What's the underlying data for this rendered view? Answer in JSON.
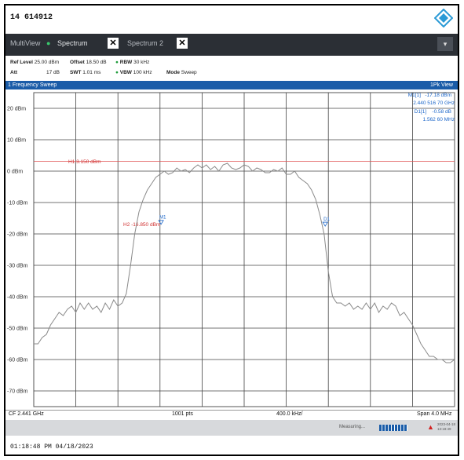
{
  "window": {
    "id_text": "14 614912",
    "timestamp": "01:18:48 PM  04/18/2023"
  },
  "tabs": [
    {
      "label": "MultiView",
      "active": false
    },
    {
      "label": "Spectrum",
      "active": true
    },
    {
      "label": "Spectrum 2",
      "active": false
    }
  ],
  "params": {
    "ref_level_label": "Ref Level",
    "ref_level_value": "25.00 dBm",
    "offset_label": "Offset",
    "offset_value": "18.50 dB",
    "rbw_label": "RBW",
    "rbw_value": "30 kHz",
    "att_label": "Att",
    "att_value": "17 dB",
    "swt_label": "SWT",
    "swt_value": "1.01 ms",
    "vbw_label": "VBW",
    "vbw_value": "100 kHz",
    "mode_label": "Mode",
    "mode_value": "Sweep"
  },
  "sweep": {
    "title": "1 Frequency Sweep",
    "view": "1Pk View"
  },
  "markers": {
    "m1_label": "M1[1]",
    "m1_level": "-17.18 dBm",
    "m1_freq": "2.440 516 70 GHz",
    "d1_label": "D1[1]",
    "d1_level": "-0.58 dB",
    "d1_freq": "1.562 60 MHz"
  },
  "lines": {
    "h1": "H1 3.150 dBm",
    "h2": "H2 -16.850 dBm"
  },
  "y_ticks": [
    "20 dBm",
    "10 dBm",
    "0 dBm",
    "-10 dBm",
    "-20 dBm",
    "-30 dBm",
    "-40 dBm",
    "-50 dBm",
    "-60 dBm",
    "-70 dBm"
  ],
  "status": {
    "cf": "CF 2.441 GHz",
    "pts": "1001 pts",
    "div": "400.0 kHz/",
    "span": "Span 4.0 MHz"
  },
  "bottom": {
    "measuring": "Measuring...",
    "date_small": "2023-04-18",
    "time_small": "13:18:49"
  },
  "chart_data": {
    "type": "line",
    "x_unit": "MHz offset from CF 2.441 GHz",
    "xlim": [
      -2.0,
      2.0
    ],
    "ylim": [
      -75,
      25
    ],
    "reference_lines": [
      {
        "name": "H1",
        "value": 3.15
      },
      {
        "name": "H2",
        "value": -16.85
      }
    ],
    "series": [
      {
        "name": "1Pk View",
        "color": "#8a8a8a",
        "x": [
          -2.0,
          -1.96,
          -1.92,
          -1.88,
          -1.84,
          -1.8,
          -1.76,
          -1.72,
          -1.68,
          -1.64,
          -1.6,
          -1.56,
          -1.52,
          -1.48,
          -1.44,
          -1.4,
          -1.36,
          -1.32,
          -1.28,
          -1.24,
          -1.2,
          -1.16,
          -1.12,
          -1.08,
          -1.04,
          -1.0,
          -0.96,
          -0.92,
          -0.88,
          -0.84,
          -0.8,
          -0.76,
          -0.72,
          -0.68,
          -0.64,
          -0.6,
          -0.56,
          -0.52,
          -0.48,
          -0.44,
          -0.4,
          -0.36,
          -0.32,
          -0.28,
          -0.24,
          -0.2,
          -0.16,
          -0.12,
          -0.08,
          -0.04,
          0.0,
          0.04,
          0.08,
          0.12,
          0.16,
          0.2,
          0.24,
          0.28,
          0.32,
          0.36,
          0.4,
          0.44,
          0.48,
          0.52,
          0.56,
          0.6,
          0.64,
          0.68,
          0.72,
          0.76,
          0.8,
          0.84,
          0.88,
          0.92,
          0.96,
          1.0,
          1.04,
          1.08,
          1.12,
          1.16,
          1.2,
          1.24,
          1.28,
          1.32,
          1.36,
          1.4,
          1.44,
          1.48,
          1.52,
          1.56,
          1.6,
          1.64,
          1.68,
          1.72,
          1.76,
          1.8,
          1.84,
          1.88,
          1.92,
          1.96,
          2.0
        ],
        "y": [
          -55,
          -55,
          -53,
          -52,
          -49,
          -47,
          -45,
          -46,
          -44,
          -43,
          -45,
          -42,
          -44,
          -42,
          -44,
          -43,
          -45,
          -42,
          -44,
          -41,
          -43,
          -42,
          -39,
          -30,
          -20,
          -13,
          -9,
          -6,
          -4,
          -2,
          -1,
          0,
          -1,
          -0.5,
          1,
          0,
          0.5,
          -0.5,
          1,
          2,
          1,
          2,
          0.5,
          1.5,
          0,
          2,
          2.5,
          1,
          0.5,
          1,
          2,
          1.5,
          0,
          1,
          0.5,
          -0.5,
          -0.5,
          0.5,
          0,
          1,
          -1,
          -1,
          0,
          -2,
          -3,
          -4,
          -6,
          -9,
          -14,
          -20,
          -32,
          -40,
          -42,
          -42,
          -43,
          -42,
          -44,
          -43,
          -44,
          -42,
          -44,
          -42,
          -45,
          -43,
          -44,
          -42,
          -43,
          -46,
          -45,
          -47,
          -49,
          -52,
          -55,
          -57,
          -59,
          -59,
          -60,
          -60,
          -61,
          -61,
          -60
        ]
      }
    ],
    "markers": [
      {
        "name": "M1",
        "x": -0.79,
        "y": -17.18
      },
      {
        "name": "D1",
        "x": 0.77,
        "y": -17.76
      }
    ]
  }
}
